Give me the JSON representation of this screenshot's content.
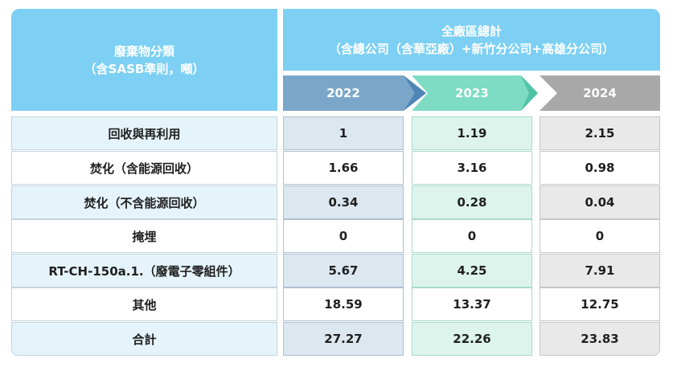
{
  "header": {
    "left_title": "廢棄物分類",
    "left_subtitle": "（含SASB準則，噸）",
    "right_title": "全廠區總計",
    "right_subtitle": "（含總公司（含華亞廠）+新竹分公司+高雄分公司）",
    "years": [
      "2022",
      "2023",
      "2024"
    ]
  },
  "colors": {
    "header_blue": "#7dd0f3",
    "year_2022": "#7aa6c9",
    "year_2023": "#7ddcc3",
    "year_2024": "#a8a8a8"
  },
  "rows": [
    {
      "label": "回收與再利用",
      "v2022": "1",
      "v2023": "1.19",
      "v2024": "2.15"
    },
    {
      "label": "焚化（含能源回收）",
      "v2022": "1.66",
      "v2023": "3.16",
      "v2024": "0.98"
    },
    {
      "label": "焚化（不含能源回收）",
      "v2022": "0.34",
      "v2023": "0.28",
      "v2024": "0.04"
    },
    {
      "label": "掩埋",
      "v2022": "0",
      "v2023": "0",
      "v2024": "0"
    },
    {
      "label": "RT-CH-150a.1.（廢電子零組件）",
      "v2022": "5.67",
      "v2023": "4.25",
      "v2024": "7.91"
    },
    {
      "label": "其他",
      "v2022": "18.59",
      "v2023": "13.37",
      "v2024": "12.75"
    },
    {
      "label": "合計",
      "v2022": "27.27",
      "v2023": "22.26",
      "v2024": "23.83"
    }
  ]
}
